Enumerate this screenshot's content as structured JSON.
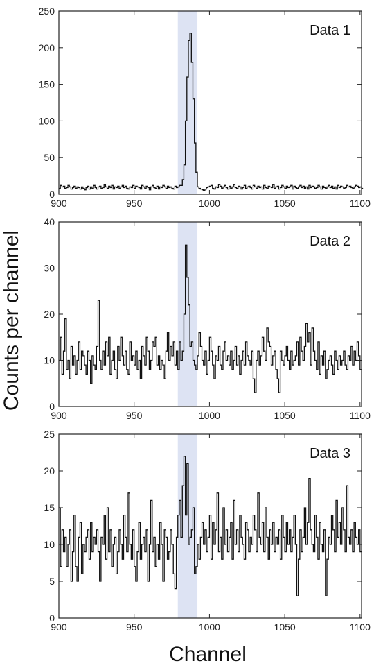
{
  "figure": {
    "ylabel": "Counts per channel",
    "xlabel": "Channel",
    "colors": {
      "highlight": "#dde3f3",
      "line": "#111111",
      "frame": "#222222"
    }
  },
  "chart_data": [
    {
      "type": "line",
      "step": true,
      "label": "Data 1",
      "xlim": [
        900,
        1101
      ],
      "ylim": [
        0,
        250
      ],
      "xticks": [
        900,
        950,
        1000,
        1050,
        1100
      ],
      "yticks": [
        0,
        50,
        100,
        150,
        200,
        250
      ],
      "highlight_x": [
        979,
        992
      ],
      "x_start": 900,
      "values": [
        8,
        12,
        10,
        11,
        8,
        9,
        12,
        10,
        7,
        9,
        11,
        8,
        10,
        9,
        7,
        10,
        8,
        6,
        9,
        11,
        7,
        10,
        8,
        12,
        9,
        7,
        10,
        11,
        8,
        9,
        13,
        10,
        8,
        11,
        9,
        12,
        7,
        10,
        9,
        11,
        8,
        10,
        12,
        9,
        11,
        8,
        7,
        10,
        9,
        12,
        8,
        11,
        10,
        9,
        7,
        12,
        10,
        8,
        11,
        9,
        6,
        10,
        12,
        9,
        8,
        11,
        7,
        10,
        9,
        12,
        10,
        8,
        11,
        9,
        10,
        8,
        7,
        11,
        9,
        10,
        12,
        12,
        20,
        40,
        100,
        160,
        210,
        220,
        180,
        130,
        70,
        30,
        10,
        8,
        7,
        6,
        5,
        7,
        9,
        10,
        11,
        12,
        8,
        7,
        10,
        9,
        13,
        11,
        8,
        10,
        12,
        9,
        7,
        11,
        8,
        10,
        13,
        9,
        8,
        11,
        10,
        7,
        9,
        12,
        8,
        10,
        11,
        9,
        7,
        12,
        10,
        8,
        11,
        9,
        10,
        7,
        12,
        9,
        8,
        11,
        10,
        9,
        13,
        8,
        10,
        11,
        7,
        9,
        12,
        10,
        8,
        11,
        9,
        10,
        12,
        7,
        11,
        9,
        8,
        10,
        12,
        9,
        11,
        8,
        10,
        7,
        12,
        9,
        11,
        10,
        8,
        9,
        12,
        10,
        7,
        11,
        9,
        8,
        10,
        12,
        9,
        11,
        8,
        10,
        7,
        12,
        9,
        11,
        10,
        8,
        9,
        12,
        10,
        11,
        9,
        8,
        10,
        12,
        11,
        9,
        10,
        8
      ]
    },
    {
      "type": "line",
      "step": true,
      "label": "Data 2",
      "xlim": [
        900,
        1101
      ],
      "ylim": [
        0,
        40
      ],
      "xticks": [
        900,
        950,
        1000,
        1050,
        1100
      ],
      "yticks": [
        0,
        10,
        20,
        30,
        40
      ],
      "highlight_x": [
        979,
        992
      ],
      "x_start": 900,
      "values": [
        10,
        15,
        7,
        12,
        19,
        8,
        10,
        6,
        13,
        9,
        11,
        7,
        10,
        14,
        8,
        12,
        11,
        9,
        7,
        12,
        10,
        5,
        11,
        9,
        8,
        13,
        23,
        10,
        8,
        12,
        9,
        14,
        11,
        15,
        7,
        10,
        12,
        8,
        6,
        13,
        10,
        15,
        11,
        9,
        12,
        8,
        7,
        14,
        10,
        11,
        9,
        12,
        8,
        10,
        6,
        13,
        11,
        9,
        15,
        12,
        8,
        10,
        14,
        13,
        15,
        9,
        11,
        8,
        10,
        9,
        6,
        12,
        16,
        10,
        13,
        11,
        14,
        9,
        12,
        8,
        14,
        10,
        12,
        20,
        35,
        28,
        22,
        13,
        14,
        10,
        9,
        8,
        11,
        16,
        13,
        10,
        9,
        12,
        7,
        10,
        15,
        12,
        9,
        6,
        11,
        10,
        13,
        9,
        8,
        12,
        14,
        10,
        11,
        9,
        12,
        8,
        10,
        13,
        9,
        11,
        7,
        10,
        12,
        9,
        14,
        11,
        10,
        9,
        12,
        6,
        3,
        10,
        12,
        9,
        11,
        15,
        12,
        10,
        17,
        14,
        13,
        9,
        11,
        12,
        8,
        6,
        3,
        12,
        10,
        9,
        11,
        13,
        10,
        8,
        12,
        9,
        10,
        11,
        14,
        9,
        15,
        12,
        10,
        13,
        18,
        14,
        16,
        9,
        17,
        12,
        10,
        8,
        14,
        7,
        11,
        9,
        12,
        6,
        8,
        10,
        11,
        9,
        7,
        12,
        10,
        8,
        11,
        9,
        10,
        12,
        9,
        8,
        11,
        10,
        13,
        9,
        12,
        10,
        14,
        11,
        8
      ]
    },
    {
      "type": "line",
      "step": true,
      "label": "Data 3",
      "xlim": [
        900,
        1101
      ],
      "ylim": [
        0,
        25
      ],
      "xticks": [
        900,
        950,
        1000,
        1050,
        1100
      ],
      "yticks": [
        0,
        5,
        10,
        15,
        20,
        25
      ],
      "highlight_x": [
        979,
        992
      ],
      "x_start": 900,
      "values": [
        15,
        7,
        12,
        9,
        11,
        7,
        10,
        12,
        5,
        9,
        14,
        7,
        5,
        11,
        13,
        6,
        10,
        9,
        11,
        12,
        8,
        13,
        9,
        11,
        10,
        12,
        9,
        5,
        11,
        10,
        14,
        8,
        15,
        9,
        12,
        7,
        10,
        11,
        6,
        9,
        12,
        10,
        8,
        14,
        11,
        9,
        17,
        10,
        8,
        12,
        7,
        5,
        9,
        13,
        8,
        10,
        11,
        9,
        12,
        5,
        10,
        16,
        9,
        11,
        7,
        10,
        8,
        13,
        10,
        5,
        12,
        11,
        8,
        9,
        12,
        10,
        6,
        4,
        11,
        14,
        16,
        11,
        18,
        22,
        14,
        21,
        10,
        11,
        12,
        15,
        6,
        7,
        10,
        8,
        11,
        13,
        10,
        12,
        9,
        11,
        14,
        8,
        13,
        10,
        12,
        17,
        9,
        11,
        8,
        15,
        10,
        12,
        9,
        11,
        13,
        8,
        16,
        10,
        12,
        9,
        14,
        11,
        10,
        8,
        13,
        12,
        9,
        11,
        10,
        14,
        12,
        9,
        17,
        11,
        10,
        13,
        9,
        15,
        11,
        8,
        12,
        10,
        13,
        9,
        11,
        10,
        12,
        8,
        14,
        11,
        9,
        13,
        10,
        12,
        9,
        11,
        14,
        10,
        3,
        8,
        12,
        9,
        11,
        15,
        10,
        13,
        19,
        12,
        10,
        9,
        14,
        11,
        8,
        13,
        10,
        9,
        12,
        3,
        8,
        11,
        10,
        14,
        12,
        9,
        16,
        11,
        13,
        10,
        15,
        12,
        9,
        18,
        11,
        10,
        12,
        9,
        13,
        11,
        10,
        12,
        9
      ]
    }
  ]
}
